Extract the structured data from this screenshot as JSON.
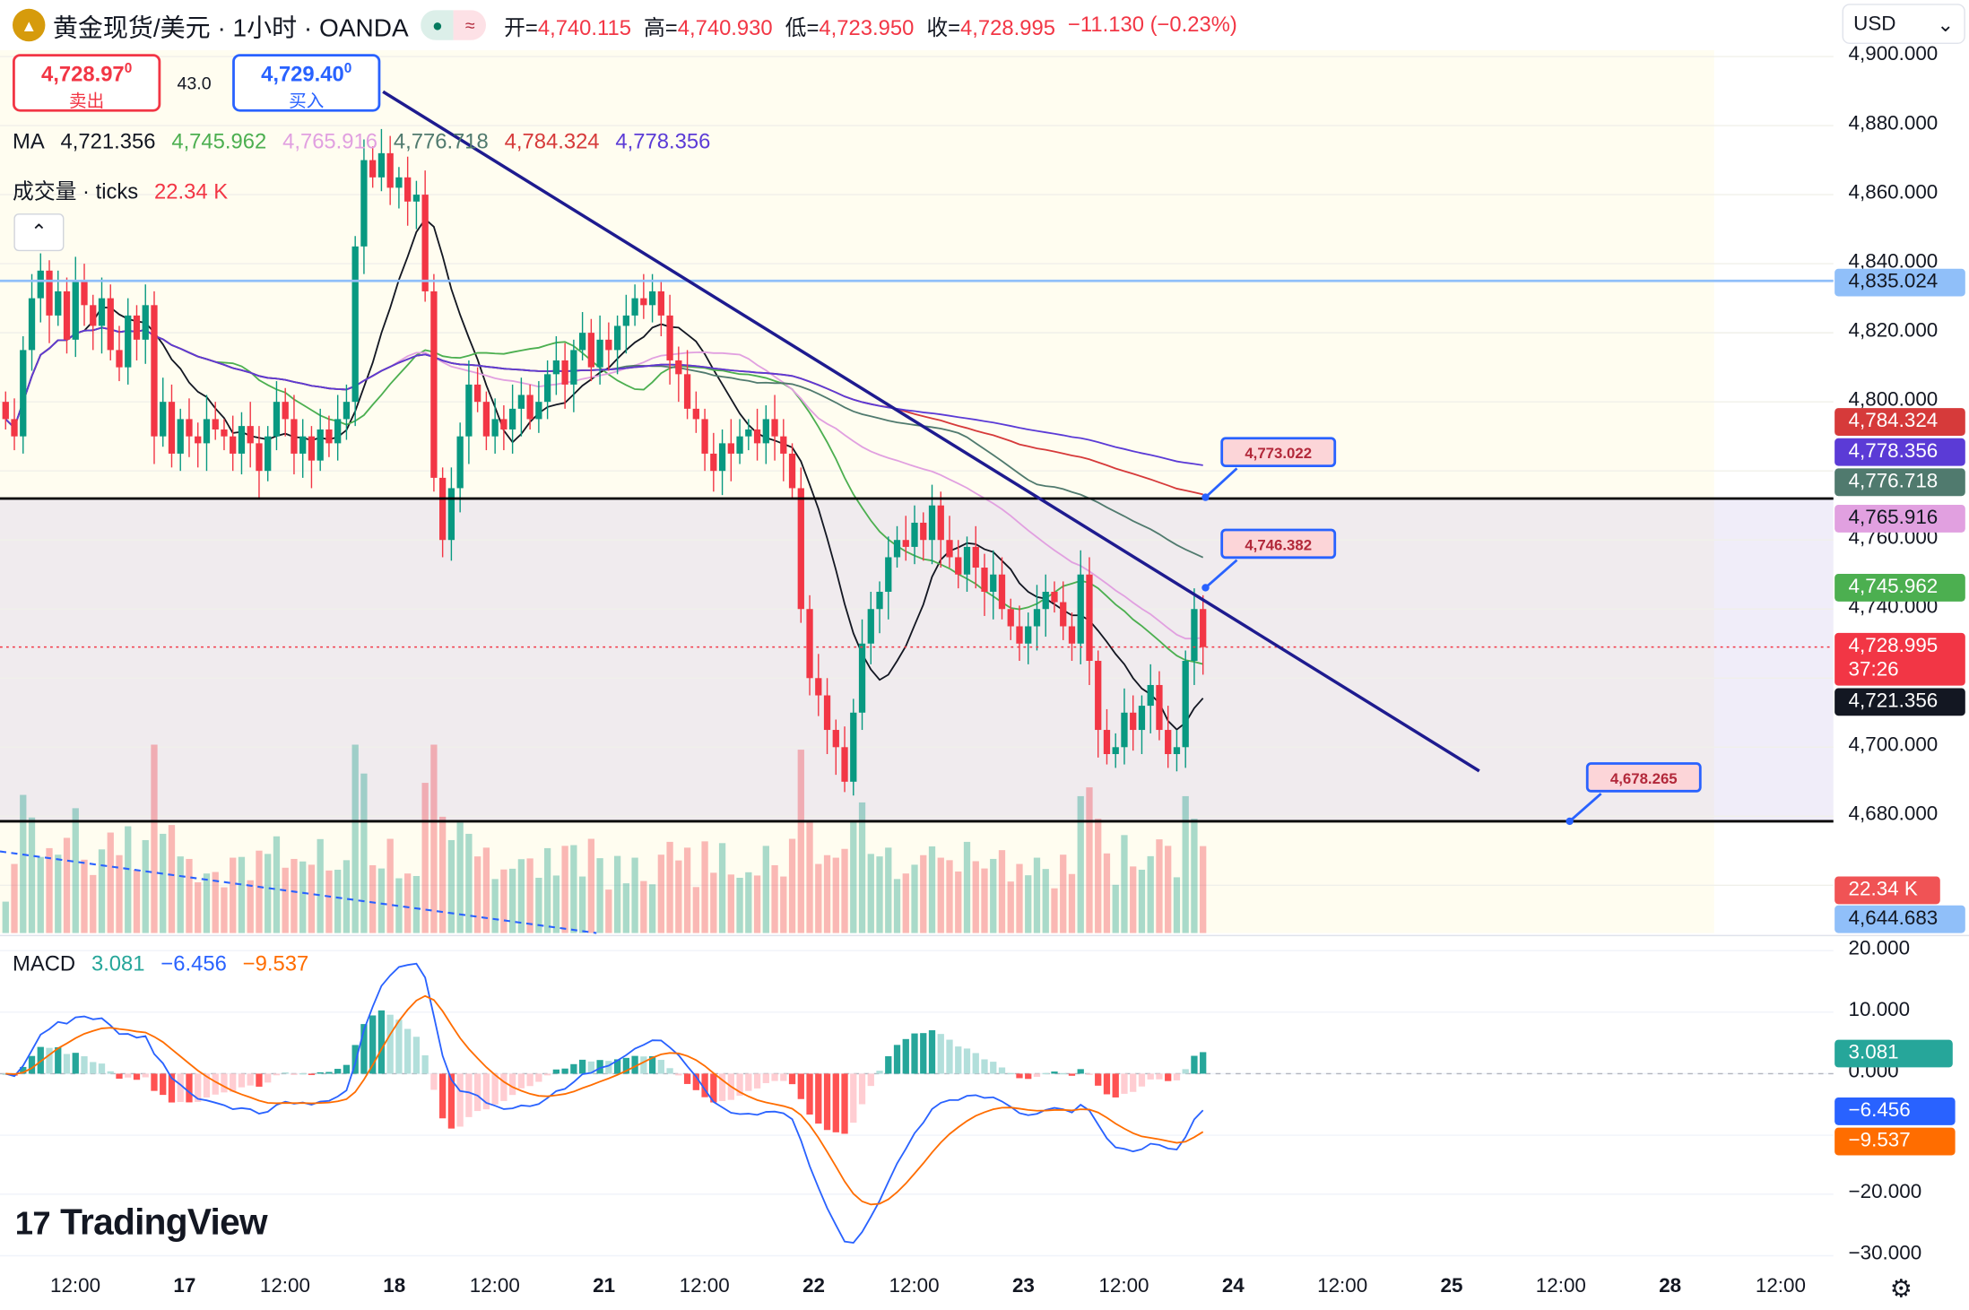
{
  "header": {
    "symbol_title": "黄金现货/美元 · 1小时 · OANDA",
    "open_label": "开=",
    "open": "4,740.115",
    "high_label": "高=",
    "high": "4,740.930",
    "low_label": "低=",
    "low": "4,723.950",
    "close_label": "收=",
    "close": "4,728.995",
    "change": "−11.130 (−0.23%)",
    "currency": "USD"
  },
  "trade": {
    "sell_price": "4,728.97",
    "sell_sup": "0",
    "sell_label": "卖出",
    "spread": "43.0",
    "buy_price": "4,729.40",
    "buy_sup": "0",
    "buy_label": "买入"
  },
  "ma_legend": {
    "label": "MA",
    "values": [
      "4,721.356",
      "4,745.962",
      "4,765.916",
      "4,776.718",
      "4,784.324",
      "4,778.356"
    ]
  },
  "volume_legend": {
    "label": "成交量 · ticks",
    "value": "22.34 K"
  },
  "macd_legend": {
    "label": "MACD",
    "hist": "3.081",
    "macd": "−6.456",
    "signal": "−9.537"
  },
  "colors": {
    "up": "#089981",
    "down": "#f23645",
    "ma": [
      "#131722",
      "#4caf50",
      "#e1a0e0",
      "#507a6e",
      "#d63a3a",
      "#5b3bd6"
    ],
    "macd": "#2962ff",
    "signal": "#ff6d00",
    "trendline": "#1e1b8f",
    "hline_blue": "#90bff9"
  },
  "price_axis": {
    "ticks": [
      "4,900.000",
      "4,880.000",
      "4,860.000",
      "4,840.000",
      "4,820.000",
      "4,800.000",
      "4,760.000",
      "4,740.000",
      "4,700.000",
      "4,680.000"
    ],
    "tags": [
      {
        "text": "4,835.024",
        "price": 4835.024,
        "bg": "#90bff9",
        "fg": "#131722"
      },
      {
        "text": "4,784.324",
        "price": 4784.324,
        "bg": "#d63a3a",
        "fg": "#fff"
      },
      {
        "text": "4,778.356",
        "price": 4778.356,
        "bg": "#5b3bd6",
        "fg": "#fff"
      },
      {
        "text": "4,776.718",
        "price": 4776.718,
        "bg": "#507a6e",
        "fg": "#fff"
      },
      {
        "text": "4,765.916",
        "price": 4765.916,
        "bg": "#e1a0e0",
        "fg": "#131722"
      },
      {
        "text": "4,745.962",
        "price": 4745.962,
        "bg": "#4caf50",
        "fg": "#fff"
      },
      {
        "text": "4,721.356",
        "price": 4721.356,
        "bg": "#131722",
        "fg": "#fff"
      }
    ],
    "last_price": "4,728.995",
    "countdown": "37:26",
    "volume_tag": "22.34 K",
    "low_tag": "4,644.683"
  },
  "macd_axis": {
    "ticks": [
      "20.000",
      "10.000",
      "0.000",
      "−20.000",
      "−30.000"
    ]
  },
  "drawings": {
    "callouts": [
      "4,773.022",
      "4,746.382",
      "4,678.265"
    ]
  },
  "time_axis": [
    "12:00",
    "17",
    "12:00",
    "18",
    "12:00",
    "21",
    "12:00",
    "22",
    "12:00",
    "23",
    "12:00",
    "24",
    "12:00",
    "25",
    "12:00",
    "28",
    "12:00"
  ],
  "brand": "TradingView",
  "chart_data": {
    "type": "candlestick",
    "interval": "1h",
    "closes": [
      4795,
      4790,
      4815,
      4830,
      4838,
      4825,
      4832,
      4818,
      4835,
      4828,
      4822,
      4830,
      4815,
      4810,
      4825,
      4818,
      4828,
      4790,
      4800,
      4785,
      4795,
      4790,
      4788,
      4795,
      4792,
      4790,
      4785,
      4793,
      4788,
      4780,
      4790,
      4800,
      4795,
      4785,
      4790,
      4783,
      4792,
      4788,
      4795,
      4800,
      4845,
      4870,
      4865,
      4872,
      4862,
      4865,
      4858,
      4860,
      4832,
      4778,
      4760,
      4775,
      4790,
      4805,
      4800,
      4790,
      4795,
      4792,
      4798,
      4802,
      4795,
      4800,
      4808,
      4812,
      4805,
      4815,
      4820,
      4810,
      4818,
      4815,
      4822,
      4825,
      4830,
      4828,
      4832,
      4825,
      4812,
      4808,
      4798,
      4795,
      4785,
      4780,
      4788,
      4785,
      4790,
      4792,
      4788,
      4795,
      4790,
      4785,
      4775,
      4740,
      4720,
      4715,
      4705,
      4700,
      4690,
      4710,
      4730,
      4740,
      4745,
      4755,
      4760,
      4758,
      4765,
      4760,
      4770,
      4760,
      4755,
      4750,
      4758,
      4752,
      4745,
      4750,
      4740,
      4735,
      4730,
      4735,
      4740,
      4745,
      4742,
      4735,
      4730,
      4750,
      4725,
      4705,
      4698,
      4700,
      4710,
      4705,
      4712,
      4718,
      4705,
      4698,
      4700,
      4725,
      4740,
      4728.995
    ]
  }
}
